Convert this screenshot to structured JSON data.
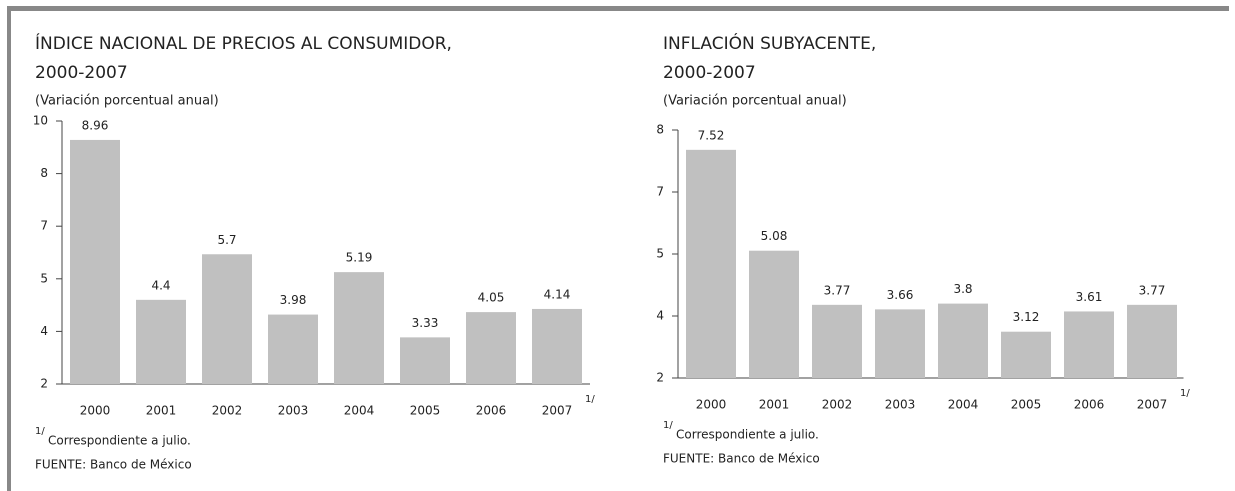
{
  "chart_data": [
    {
      "type": "bar",
      "title": [
        "ÍNDICE NACIONAL DE PRECIOS AL CONSUMIDOR,",
        "2000-2007"
      ],
      "subtitle": "(Variación porcentual anual)",
      "categories": [
        "2000",
        "2001",
        "2002",
        "2003",
        "2004",
        "2005",
        "2006",
        "2007"
      ],
      "values": [
        8.96,
        4.4,
        5.7,
        3.98,
        5.19,
        3.33,
        4.05,
        4.14
      ],
      "color": "#c0c0c0",
      "ylim": [
        2,
        9.5
      ],
      "yticks": [
        2,
        {
          "value": 3.5,
          "label": "4"
        },
        5,
        {
          "value": 6.5,
          "label": "7"
        },
        8,
        {
          "value": 9.5,
          "label": "10"
        }
      ],
      "footnote_marker": "1/",
      "footnote": "Correspondiente a julio.",
      "source": "FUENTE: Banco de México"
    },
    {
      "type": "bar",
      "title": [
        "INFLACIÓN SUBYACENTE,",
        "2000-2007"
      ],
      "subtitle": "(Variación porcentual anual)",
      "categories": [
        "2000",
        "2001",
        "2002",
        "2003",
        "2004",
        "2005",
        "2006",
        "2007"
      ],
      "values": [
        7.52,
        5.08,
        3.77,
        3.66,
        3.8,
        3.12,
        3.61,
        3.77
      ],
      "color": "#c0c0c0",
      "ylim": [
        2,
        8
      ],
      "yticks": [
        2,
        {
          "value": 3.5,
          "label": "4"
        },
        5,
        {
          "value": 6.5,
          "label": "7"
        },
        8
      ],
      "footnote_marker": "1/",
      "footnote": "Correspondiente a julio.",
      "source": "FUENTE: Banco de México"
    }
  ]
}
